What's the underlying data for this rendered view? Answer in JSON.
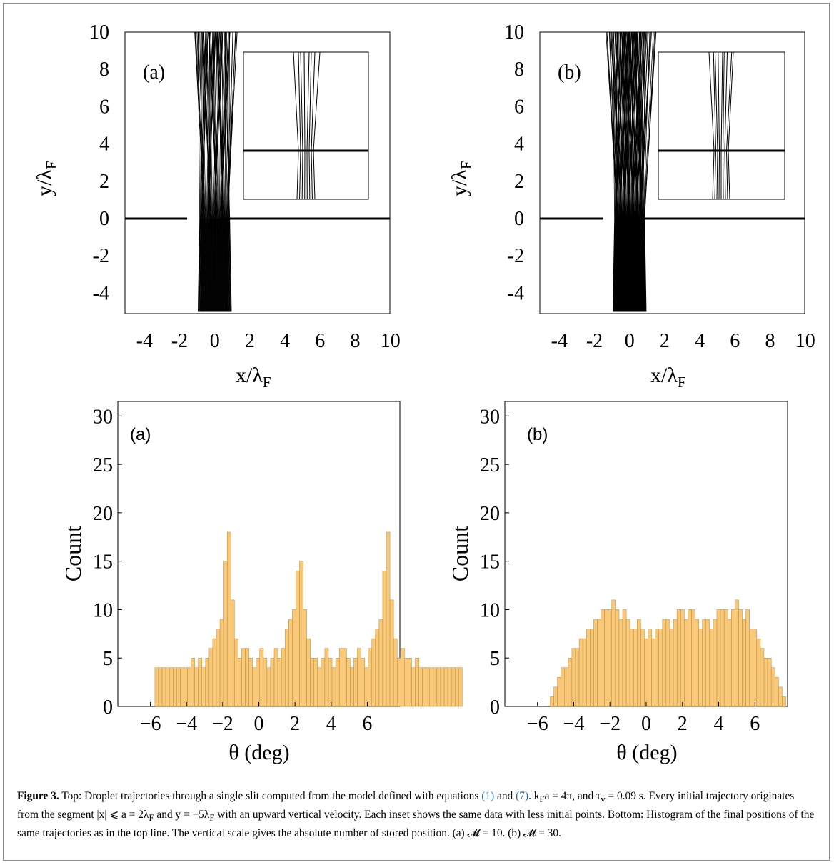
{
  "top_panels": [
    {
      "label": "(a)",
      "xlabel": "x/λ",
      "xlabel_sub": "F",
      "ylabel": "y/λ",
      "ylabel_sub": "F",
      "xticks": [
        "-4",
        "-2",
        "0",
        "2",
        "4",
        "6",
        "8",
        "10"
      ],
      "yticks": [
        "10",
        "8",
        "6",
        "4",
        "2",
        "0",
        "-2",
        "-4"
      ]
    },
    {
      "label": "(b)",
      "xlabel": "x/λ",
      "xlabel_sub": "F",
      "ylabel": "y/λ",
      "ylabel_sub": "F",
      "xticks": [
        "-4",
        "-2",
        "0",
        "2",
        "4",
        "6",
        "8",
        "10"
      ],
      "yticks": [
        "10",
        "8",
        "6",
        "4",
        "2",
        "0",
        "-2",
        "-4"
      ]
    }
  ],
  "colors": {
    "bar_fill": "#f9c977",
    "bar_stroke": "#b58a44",
    "trajectory": "#000000",
    "frame": "#8a8a8a",
    "link": "#1f6fb5"
  },
  "chart_data": [
    {
      "type": "bar",
      "label": "(a)",
      "xlabel": "θ (deg)",
      "ylabel": "Count",
      "xlim": [
        -7.8,
        7.8
      ],
      "ylim": [
        0,
        31.5
      ],
      "xticks": [
        "−6",
        "−4",
        "−2",
        "0",
        "2",
        "4",
        "6"
      ],
      "yticks": [
        "0",
        "5",
        "10",
        "15",
        "20",
        "25",
        "30"
      ],
      "bin_start": -5.75,
      "bin_width": 0.2,
      "values": [
        4,
        4,
        4,
        4,
        4,
        4,
        4,
        4,
        4,
        4,
        5,
        4,
        5,
        4,
        5,
        6,
        7,
        8,
        9,
        15,
        18,
        11,
        7,
        5,
        6,
        6,
        5,
        4,
        5,
        6,
        5,
        4,
        5,
        6,
        5,
        6,
        8,
        9,
        10,
        14,
        15,
        10,
        7,
        5,
        5,
        4,
        5,
        6,
        5,
        4,
        5,
        6,
        6,
        5,
        4,
        5,
        6,
        5,
        4,
        6,
        7,
        8,
        9,
        14,
        18,
        11,
        7,
        5,
        6,
        5,
        5,
        4,
        5,
        4,
        4,
        4,
        4,
        4,
        4,
        4,
        4,
        4,
        4,
        4,
        4
      ]
    },
    {
      "type": "bar",
      "label": "(b)",
      "xlabel": "θ (deg)",
      "ylabel": "Count",
      "xlim": [
        -7.8,
        7.8
      ],
      "ylim": [
        0,
        31.5
      ],
      "xticks": [
        "−6",
        "−4",
        "−2",
        "0",
        "2",
        "4",
        "6"
      ],
      "yticks": [
        "0",
        "5",
        "10",
        "15",
        "20",
        "25",
        "30"
      ],
      "bin_start": -5.3,
      "bin_width": 0.2,
      "values": [
        1,
        2,
        3,
        4,
        4,
        5,
        6,
        6,
        7,
        7,
        8,
        8,
        9,
        9,
        10,
        10,
        10,
        11,
        10,
        9,
        10,
        9,
        8,
        8,
        9,
        8,
        7,
        8,
        7,
        8,
        8,
        9,
        9,
        8,
        9,
        10,
        10,
        9,
        10,
        10,
        9,
        8,
        9,
        9,
        8,
        9,
        10,
        10,
        10,
        9,
        10,
        11,
        10,
        9,
        10,
        8,
        8,
        7,
        6,
        5,
        5,
        4,
        3,
        2,
        1
      ]
    }
  ],
  "caption": {
    "label": "Figure 3.",
    "part1": " Top: Droplet trajectories through a single slit computed from the model defined with equations ",
    "ref1": "(1)",
    "part2": " and ",
    "ref2": "(7)",
    "part3": ". k",
    "sub1": "F",
    "part4": "a = 4π, and τ",
    "sub2": "v",
    "part5": " = 0.09 s. Every initial trajectory originates from the segment |x| ⩽ a = 2λ",
    "sub3": "F",
    "part6": " and y = −5λ",
    "sub4": "F",
    "part7": " with an upward vertical velocity. Each inset shows the same data with less initial points. Bottom: Histogram of the final positions of the same trajectories as in the top line. The vertical scale gives the absolute number of stored position. (a) 𝓜 = 10. (b) 𝓜 = 30."
  }
}
